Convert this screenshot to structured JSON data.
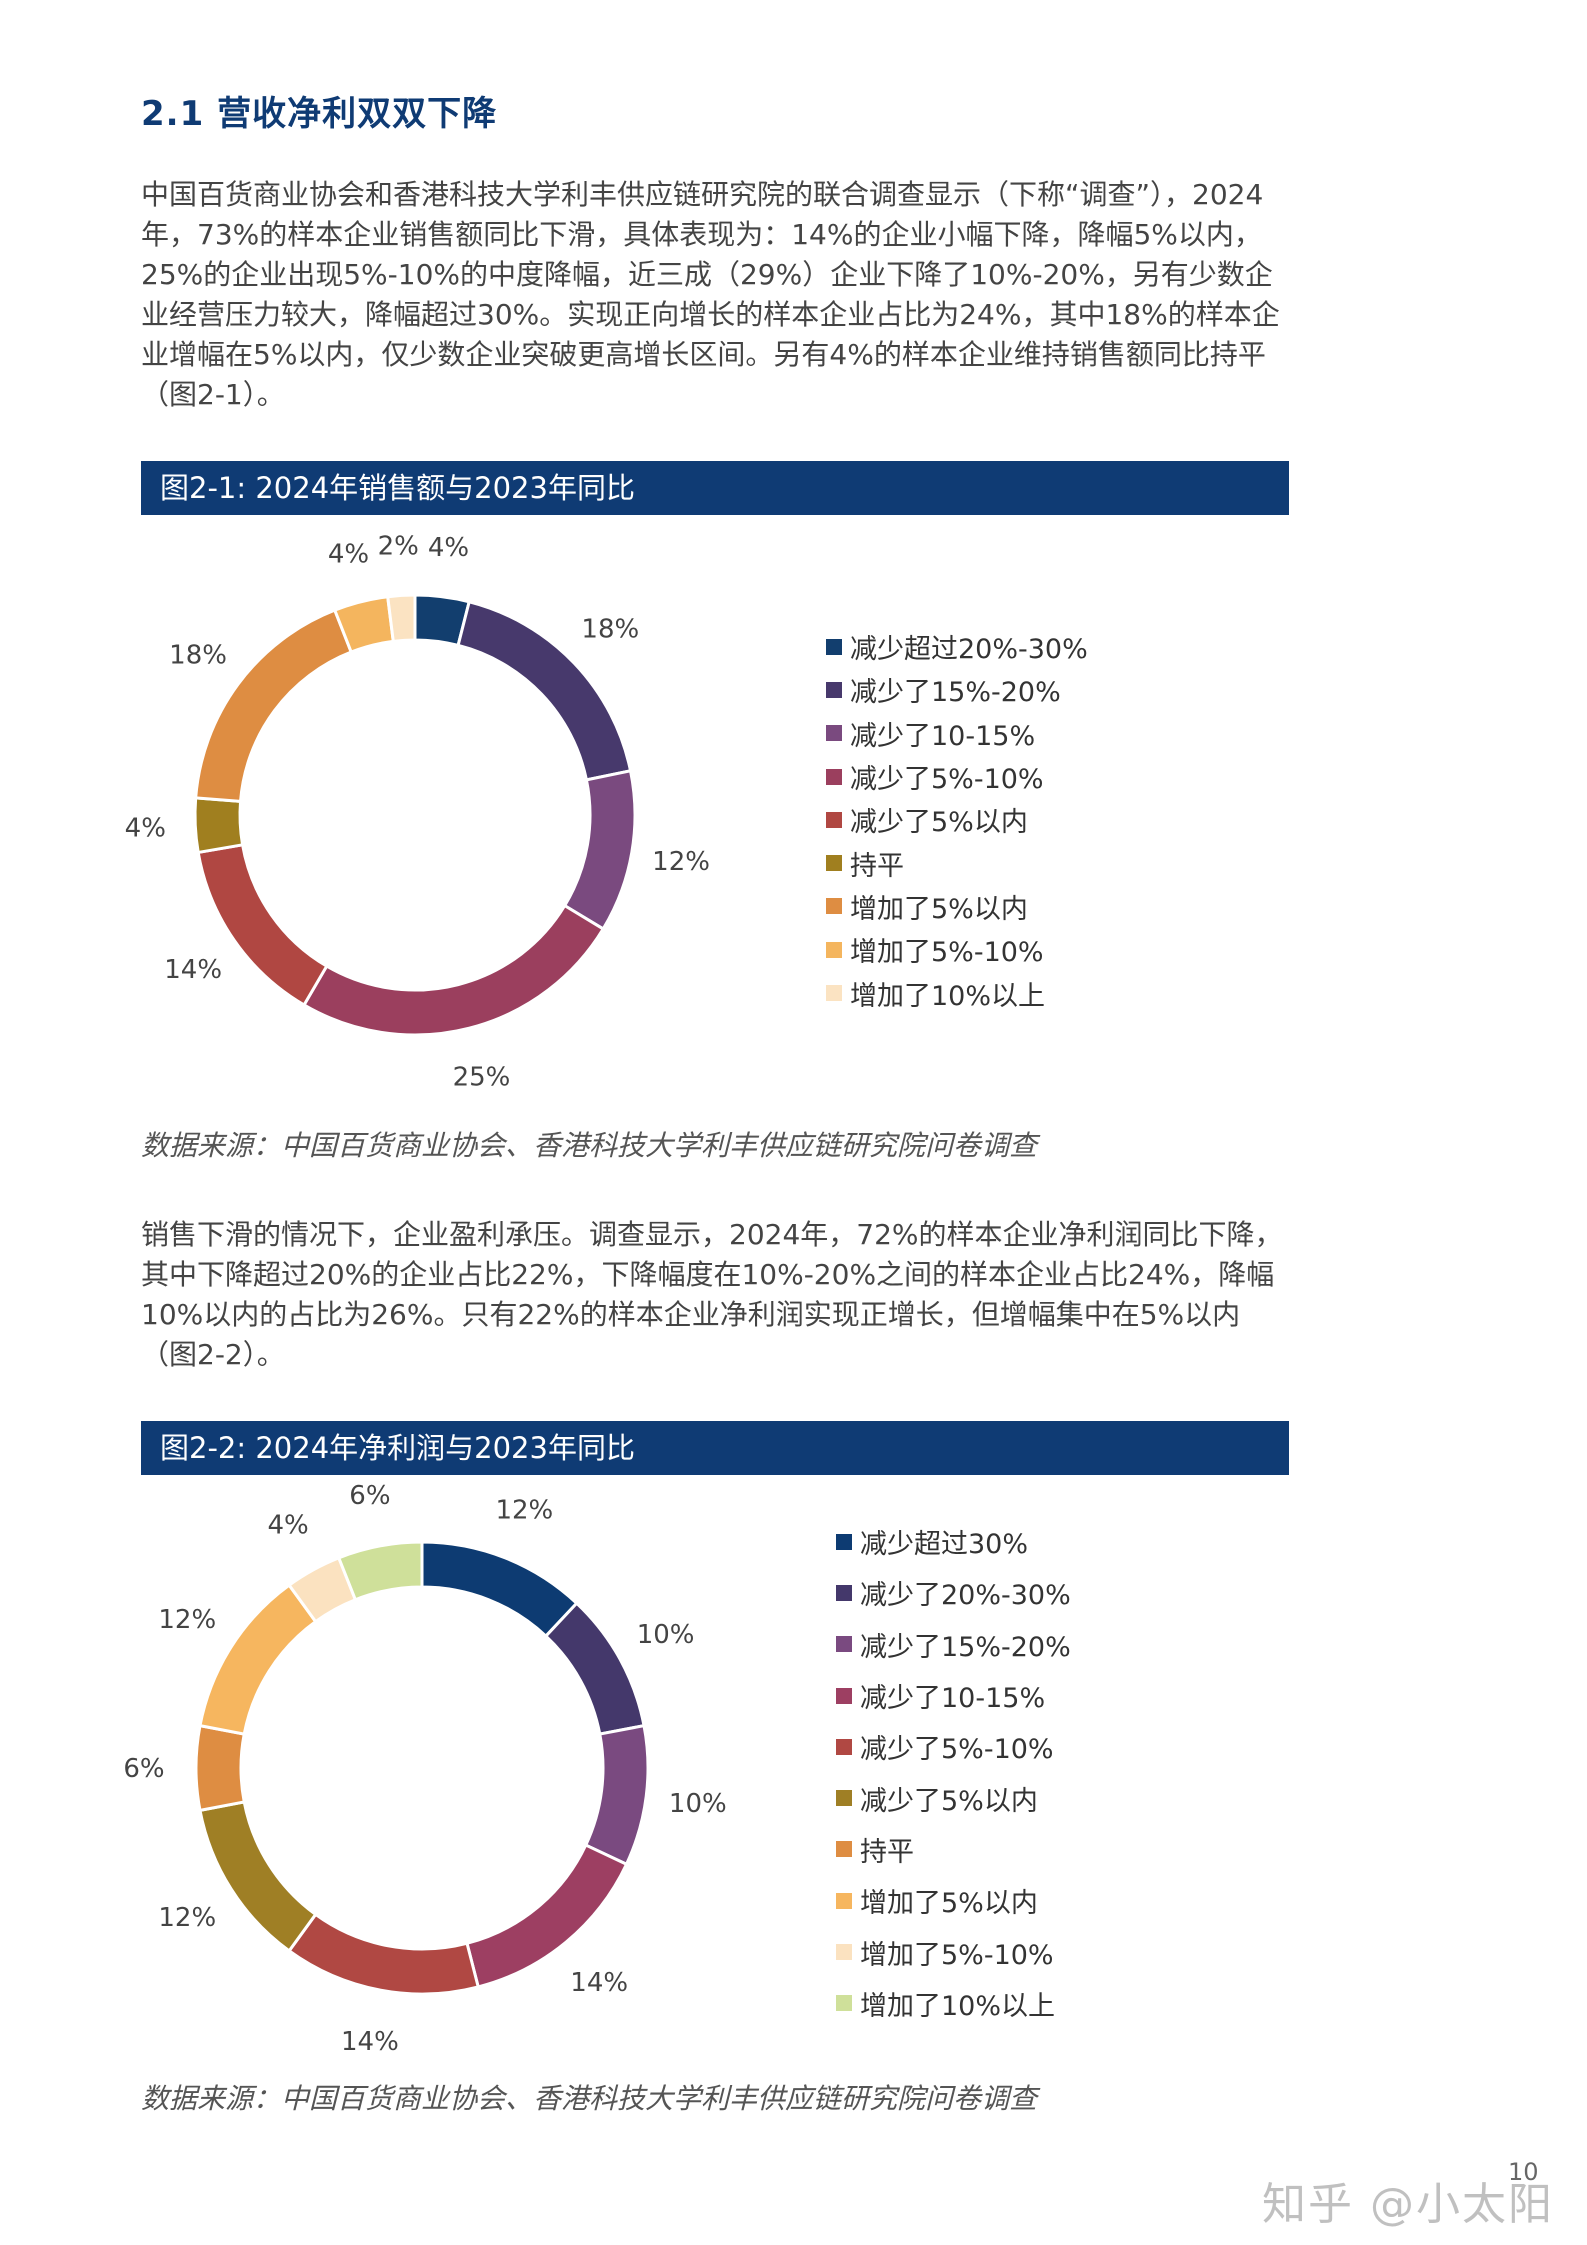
{
  "section_title": "2.1 营收净利双双下降",
  "paragraph1": "中国百货商业协会和香港科技大学利丰供应链研究院的联合调查显示（下称“调查”），2024年，73%的样本企业销售额同比下滑，具体表现为：14%的企业小幅下降，降幅5%以内，25%的企业出现5%-10%的中度降幅，近三成（29%）企业下降了10%-20%，另有少数企业经营压力较大，降幅超过30%。实现正向增长的样本企业占比为24%，其中18%的样本企业增幅在5%以内，仅少数企业突破更高增长区间。另有4%的样本企业维持销售额同比持平（图2-1）。",
  "figure1": {
    "title": "图2-1: 2024年销售额与2023年同比",
    "source": "数据来源：中国百货商业协会、香港科技大学利丰供应链研究院问卷调查"
  },
  "paragraph2": "销售下滑的情况下，企业盈利承压。调查显示，2024年，72%的样本企业净利润同比下降，其中下降超过20%的企业占比22%，下降幅度在10%-20%之间的样本企业占比24%，降幅10%以内的占比为26%。只有22%的样本企业净利润实现正增长，但增幅集中在5%以内（图2-2）。",
  "figure2": {
    "title": "图2-2: 2024年净利润与2023年同比",
    "source": "数据来源：中国百货商业协会、香港科技大学利丰供应链研究院问卷调查"
  },
  "page_number": "10",
  "watermark": "知乎 @小太阳",
  "chart_data": [
    {
      "type": "pie",
      "title": "图2-1: 2024年销售额与2023年同比",
      "categories": [
        "减少超过20%-30%",
        "减少了15%-20%",
        "减少了10-15%",
        "减少了5%-10%",
        "减少了5%以内",
        "持平",
        "增加了5%以内",
        "增加了5%-10%",
        "增加了10%以上"
      ],
      "values": [
        4,
        18,
        12,
        25,
        14,
        4,
        18,
        4,
        2
      ],
      "value_labels": [
        "4%",
        "18%",
        "12%",
        "25%",
        "14%",
        "4%",
        "18%",
        "4%",
        "2%"
      ],
      "colors": [
        "#123e6e",
        "#47396c",
        "#7a4a7f",
        "#9b3f5e",
        "#b04742",
        "#a07f1f",
        "#de8d42",
        "#f4b55e",
        "#fbe3c2"
      ],
      "donut": true,
      "legend_position": "right"
    },
    {
      "type": "pie",
      "title": "图2-2: 2024年净利润与2023年同比",
      "categories": [
        "减少超过30%",
        "减少了20%-30%",
        "减少了15%-20%",
        "减少了10-15%",
        "减少了5%-10%",
        "减少了5%以内",
        "持平",
        "增加了5%以内",
        "增加了5%-10%",
        "增加了10%以上"
      ],
      "values": [
        12,
        10,
        10,
        14,
        14,
        12,
        6,
        12,
        4,
        6
      ],
      "value_labels": [
        "12%",
        "10%",
        "10%",
        "14%",
        "14%",
        "12%",
        "6%",
        "12%",
        "4%",
        "6%"
      ],
      "colors": [
        "#0d3b72",
        "#44386b",
        "#7a4a80",
        "#9d3f62",
        "#b04843",
        "#9f7f25",
        "#de8d42",
        "#f6b65f",
        "#fbe2c0",
        "#cfe09a"
      ],
      "donut": true,
      "legend_position": "right"
    }
  ]
}
